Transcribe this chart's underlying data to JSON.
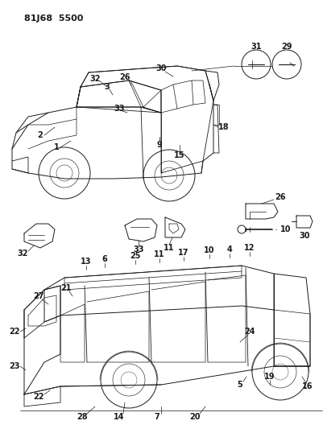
{
  "title": "81J68 5500",
  "bg_color": "#ffffff",
  "line_color": "#1a1a1a",
  "fig_width": 4.01,
  "fig_height": 5.33,
  "dpi": 100
}
